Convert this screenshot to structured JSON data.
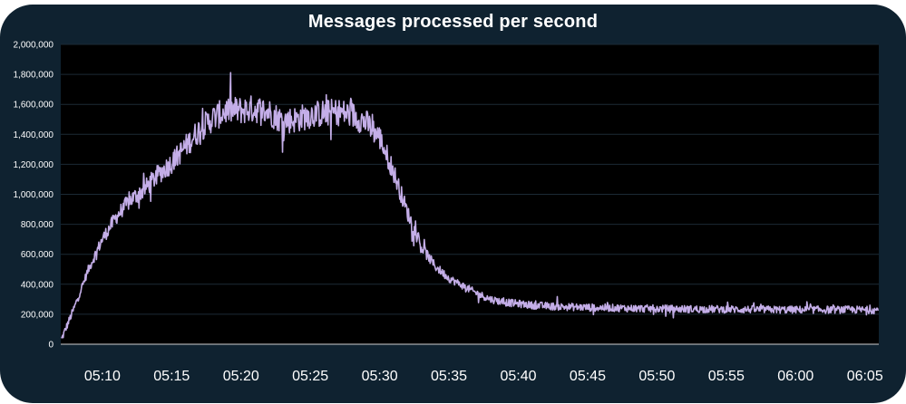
{
  "chart_data": {
    "type": "line",
    "title": "Messages processed per second",
    "xlabel": "",
    "ylabel": "",
    "ylim": [
      0,
      2000000
    ],
    "xlim": [
      "05:07",
      "06:06"
    ],
    "y_tick_labels": [
      "0",
      "200,000",
      "400,000",
      "600,000",
      "800,000",
      "1,000,000",
      "1,200,000",
      "1,400,000",
      "1,600,000",
      "1,800,000",
      "2,000,000"
    ],
    "y_ticks": [
      0,
      200000,
      400000,
      600000,
      800000,
      1000000,
      1200000,
      1400000,
      1600000,
      1800000,
      2000000
    ],
    "x_tick_labels": [
      "05:10",
      "05:15",
      "05:20",
      "05:25",
      "05:30",
      "05:35",
      "05:40",
      "05:45",
      "05:50",
      "05:55",
      "06:00",
      "06:05"
    ],
    "grid": true,
    "legend": "none",
    "series": [
      {
        "color": "#c4aee8",
        "x": [
          "05:07",
          "05:08",
          "05:09",
          "05:10",
          "05:11",
          "05:12",
          "05:13",
          "05:14",
          "05:15",
          "05:16",
          "05:17",
          "05:18",
          "05:19",
          "05:20",
          "05:21",
          "05:22",
          "05:23",
          "05:24",
          "05:25",
          "05:26",
          "05:27",
          "05:28",
          "05:29",
          "05:30",
          "05:31",
          "05:32",
          "05:33",
          "05:34",
          "05:35",
          "05:36",
          "05:37",
          "05:38",
          "05:39",
          "05:40",
          "05:41",
          "05:42",
          "05:43",
          "05:44",
          "05:45",
          "05:46",
          "05:47",
          "05:48",
          "05:49",
          "05:50",
          "05:51",
          "05:52",
          "05:53",
          "05:54",
          "05:55",
          "05:56",
          "05:57",
          "05:58",
          "05:59",
          "06:00",
          "06:01",
          "06:02",
          "06:03",
          "06:04",
          "06:05",
          "06:06"
        ],
        "values": [
          20000,
          250000,
          500000,
          700000,
          850000,
          960000,
          1030000,
          1130000,
          1210000,
          1320000,
          1430000,
          1510000,
          1560000,
          1560000,
          1570000,
          1550000,
          1490000,
          1500000,
          1530000,
          1540000,
          1550000,
          1530000,
          1480000,
          1380000,
          1150000,
          880000,
          650000,
          520000,
          440000,
          390000,
          340000,
          300000,
          280000,
          270000,
          260000,
          255000,
          250000,
          248000,
          245000,
          243000,
          242000,
          240000,
          238000,
          237000,
          236000,
          235000,
          234000,
          234000,
          233000,
          232000,
          232000,
          231000,
          230000,
          230000,
          230000,
          230000,
          230000,
          230000,
          229000,
          228000
        ]
      }
    ]
  }
}
